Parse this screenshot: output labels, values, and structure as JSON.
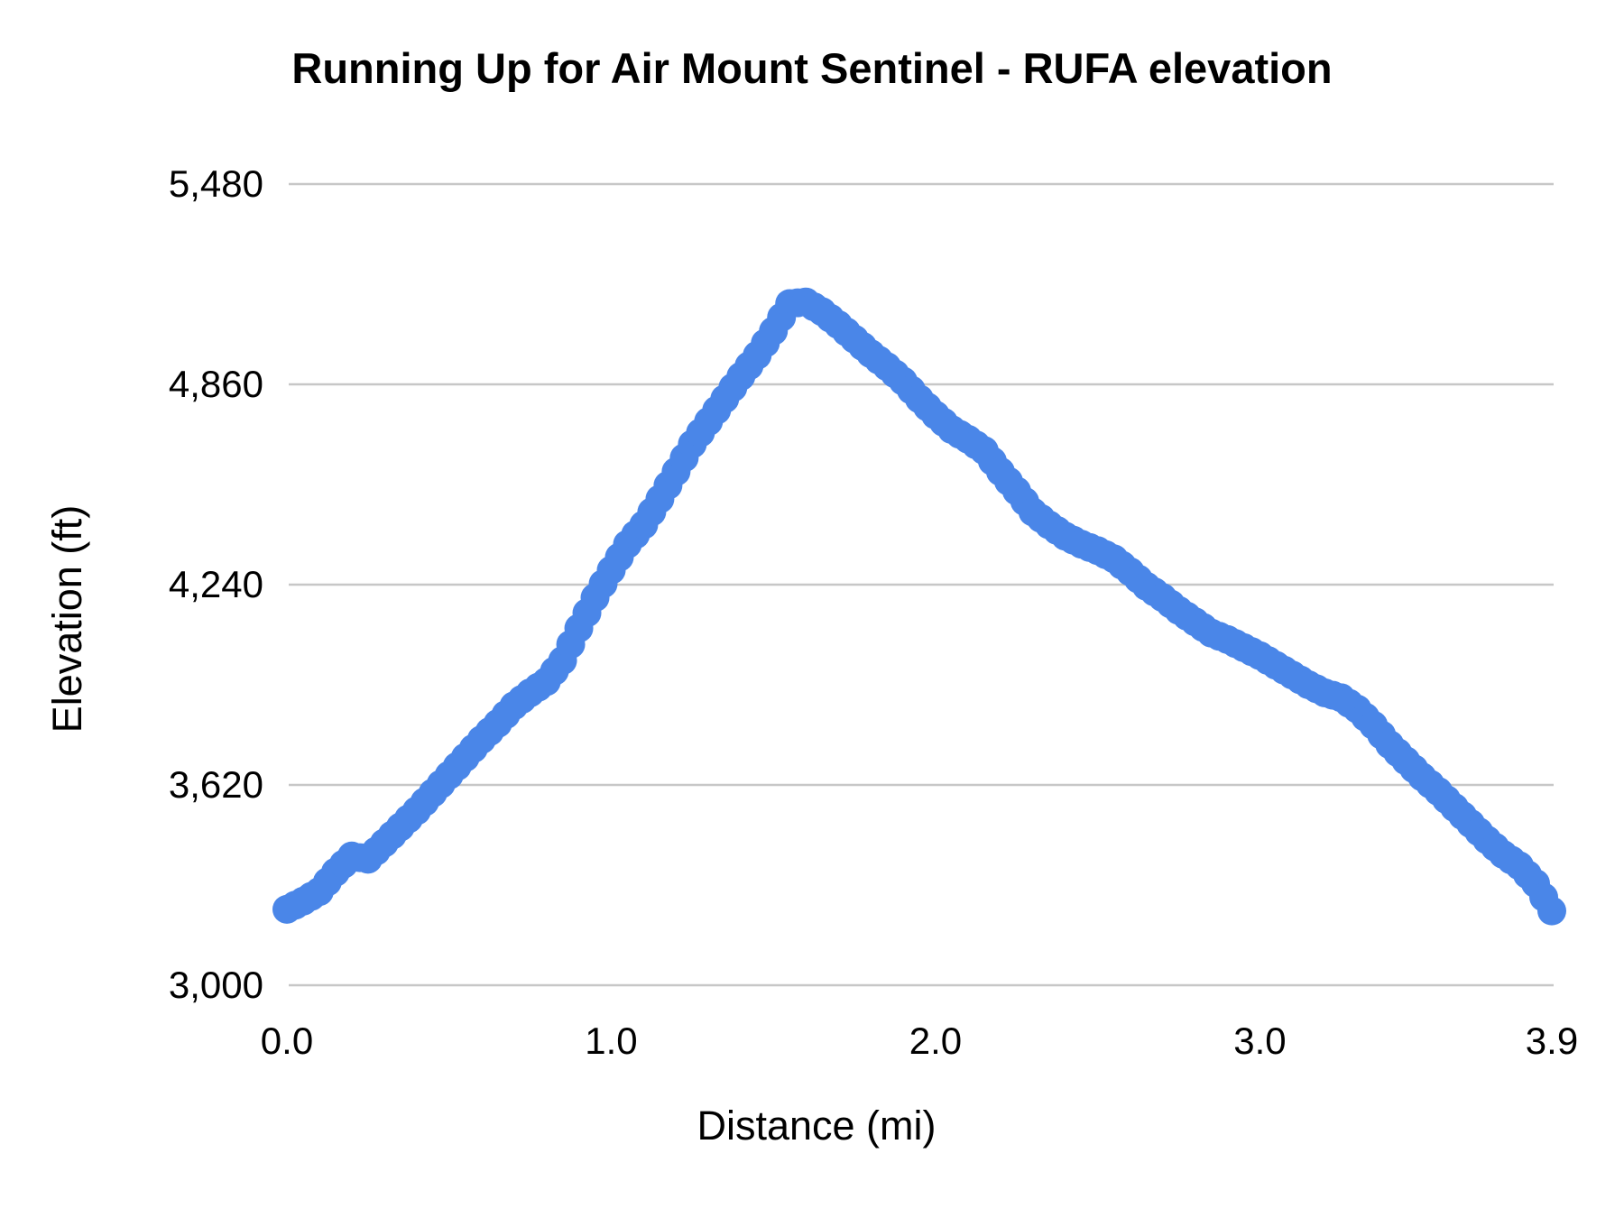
{
  "page": {
    "background_color": "#ffffff",
    "text_color": "#000000"
  },
  "chart_data": {
    "type": "scatter",
    "title": "Running Up for Air Mount Sentinel - RUFA elevation",
    "xlabel": "Distance (mi)",
    "ylabel": "Elevation (ft)",
    "legend": "none",
    "grid": "horizontal",
    "point_color": "#4a86e8",
    "gridline_color": "#c7c7c7",
    "xlim": [
      0,
      3.9
    ],
    "ylim": [
      3000,
      5480
    ],
    "x_ticks": [
      "0.0",
      "1.0",
      "2.0",
      "3.0",
      "3.9"
    ],
    "x_tick_values": [
      0,
      1,
      2,
      3,
      3.9
    ],
    "y_ticks": [
      "5,480",
      "4,860",
      "4,240",
      "3,620",
      "3,000"
    ],
    "y_tick_values": [
      5480,
      4860,
      4240,
      3620,
      3000
    ],
    "series": [
      {
        "name": "RUFA elevation",
        "points": [
          [
            0.0,
            3235
          ],
          [
            0.05,
            3260
          ],
          [
            0.1,
            3290
          ],
          [
            0.15,
            3350
          ],
          [
            0.2,
            3400
          ],
          [
            0.25,
            3390
          ],
          [
            0.3,
            3440
          ],
          [
            0.35,
            3490
          ],
          [
            0.4,
            3540
          ],
          [
            0.45,
            3595
          ],
          [
            0.5,
            3650
          ],
          [
            0.55,
            3705
          ],
          [
            0.6,
            3760
          ],
          [
            0.65,
            3810
          ],
          [
            0.7,
            3865
          ],
          [
            0.75,
            3905
          ],
          [
            0.8,
            3940
          ],
          [
            0.85,
            4005
          ],
          [
            0.9,
            4105
          ],
          [
            0.95,
            4200
          ],
          [
            1.0,
            4285
          ],
          [
            1.05,
            4365
          ],
          [
            1.1,
            4425
          ],
          [
            1.15,
            4505
          ],
          [
            1.2,
            4590
          ],
          [
            1.25,
            4675
          ],
          [
            1.3,
            4745
          ],
          [
            1.35,
            4815
          ],
          [
            1.4,
            4885
          ],
          [
            1.45,
            4950
          ],
          [
            1.5,
            5025
          ],
          [
            1.55,
            5110
          ],
          [
            1.6,
            5115
          ],
          [
            1.65,
            5085
          ],
          [
            1.7,
            5045
          ],
          [
            1.75,
            5000
          ],
          [
            1.8,
            4955
          ],
          [
            1.85,
            4915
          ],
          [
            1.9,
            4870
          ],
          [
            1.95,
            4815
          ],
          [
            2.0,
            4765
          ],
          [
            2.05,
            4720
          ],
          [
            2.1,
            4690
          ],
          [
            2.15,
            4655
          ],
          [
            2.2,
            4590
          ],
          [
            2.25,
            4530
          ],
          [
            2.3,
            4465
          ],
          [
            2.35,
            4425
          ],
          [
            2.4,
            4390
          ],
          [
            2.45,
            4365
          ],
          [
            2.5,
            4345
          ],
          [
            2.55,
            4320
          ],
          [
            2.6,
            4280
          ],
          [
            2.65,
            4235
          ],
          [
            2.7,
            4200
          ],
          [
            2.75,
            4160
          ],
          [
            2.8,
            4125
          ],
          [
            2.85,
            4090
          ],
          [
            2.9,
            4070
          ],
          [
            2.95,
            4045
          ],
          [
            3.0,
            4020
          ],
          [
            3.05,
            3990
          ],
          [
            3.1,
            3960
          ],
          [
            3.15,
            3930
          ],
          [
            3.2,
            3905
          ],
          [
            3.25,
            3890
          ],
          [
            3.3,
            3855
          ],
          [
            3.35,
            3805
          ],
          [
            3.4,
            3745
          ],
          [
            3.45,
            3695
          ],
          [
            3.5,
            3645
          ],
          [
            3.55,
            3600
          ],
          [
            3.6,
            3550
          ],
          [
            3.65,
            3500
          ],
          [
            3.7,
            3450
          ],
          [
            3.75,
            3405
          ],
          [
            3.8,
            3370
          ],
          [
            3.85,
            3315
          ],
          [
            3.9,
            3230
          ]
        ]
      }
    ]
  }
}
